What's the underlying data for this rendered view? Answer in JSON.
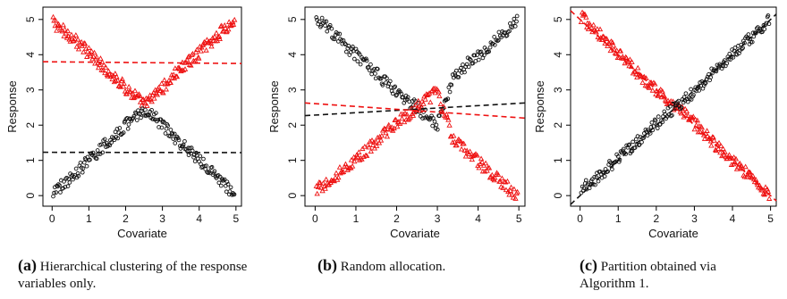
{
  "panels": [
    {
      "chart_data": {
        "type": "scatter",
        "xlabel": "Covariate",
        "ylabel": "Response",
        "xlim": [
          -0.25,
          5.15
        ],
        "ylim": [
          -0.3,
          5.35
        ],
        "xticks": [
          "0",
          "1",
          "2",
          "3",
          "4",
          "5"
        ],
        "yticks": [
          "0",
          "1",
          "2",
          "3",
          "4",
          "5"
        ],
        "series": [
          {
            "marker": "triangle",
            "color": "#ee1111",
            "x": [
              0.05,
              0.4,
              0.8,
              1.2,
              1.6,
              2.0,
              2.3,
              2.5,
              2.7,
              3.0,
              3.4,
              3.8,
              4.2,
              4.6,
              4.95
            ],
            "y": [
              4.9,
              4.6,
              4.25,
              3.85,
              3.45,
              3.05,
              2.8,
              2.55,
              2.75,
              3.05,
              3.5,
              3.85,
              4.25,
              4.65,
              4.95
            ]
          },
          {
            "marker": "circle",
            "color": "#111111",
            "x": [
              0.05,
              0.4,
              0.8,
              1.2,
              1.6,
              2.0,
              2.3,
              2.5,
              2.7,
              3.0,
              3.4,
              3.8,
              4.2,
              4.6,
              4.95
            ],
            "y": [
              0.1,
              0.4,
              0.8,
              1.2,
              1.6,
              2.0,
              2.25,
              2.45,
              2.3,
              2.0,
              1.6,
              1.2,
              0.8,
              0.4,
              0.05
            ]
          }
        ],
        "fit_lines": [
          {
            "color": "#ee1111",
            "x": [
              -0.25,
              5.15
            ],
            "y": [
              3.8,
              3.75
            ]
          },
          {
            "color": "#111111",
            "x": [
              -0.25,
              5.15
            ],
            "y": [
              1.23,
              1.22
            ]
          }
        ]
      }
    },
    {
      "chart_data": {
        "type": "scatter",
        "xlabel": "Covariate",
        "ylabel": "Response",
        "xlim": [
          -0.25,
          5.15
        ],
        "ylim": [
          -0.3,
          5.35
        ],
        "xticks": [
          "0",
          "1",
          "2",
          "3",
          "4",
          "5"
        ],
        "yticks": [
          "0",
          "1",
          "2",
          "3",
          "4",
          "5"
        ],
        "series": [
          {
            "marker": "circle",
            "color": "#111111",
            "x": [
              0.05,
              0.4,
              0.8,
              1.2,
              1.6,
              2.0,
              2.5,
              3.0,
              3.4,
              3.8,
              4.2,
              4.6,
              4.95
            ],
            "y": [
              5.05,
              4.65,
              4.2,
              3.8,
              3.35,
              2.95,
              2.5,
              2.0,
              3.4,
              3.8,
              4.15,
              4.6,
              4.95
            ]
          },
          {
            "marker": "triangle",
            "color": "#ee1111",
            "x": [
              0.05,
              0.4,
              0.8,
              1.2,
              1.6,
              2.0,
              2.5,
              3.0,
              3.4,
              3.8,
              4.2,
              4.6,
              4.95
            ],
            "y": [
              0.2,
              0.45,
              0.85,
              1.2,
              1.65,
              2.05,
              2.5,
              2.95,
              1.55,
              1.15,
              0.75,
              0.35,
              0.0
            ]
          }
        ],
        "fit_lines": [
          {
            "color": "#111111",
            "x": [
              -0.25,
              5.15
            ],
            "y": [
              2.27,
              2.63
            ]
          },
          {
            "color": "#ee1111",
            "x": [
              -0.25,
              5.15
            ],
            "y": [
              2.63,
              2.2
            ]
          }
        ]
      }
    },
    {
      "chart_data": {
        "type": "scatter",
        "xlabel": "Covariate",
        "ylabel": "Response",
        "xlim": [
          -0.25,
          5.15
        ],
        "ylim": [
          -0.3,
          5.35
        ],
        "xticks": [
          "0",
          "1",
          "2",
          "3",
          "4",
          "5"
        ],
        "yticks": [
          "0",
          "1",
          "2",
          "3",
          "4",
          "5"
        ],
        "series": [
          {
            "marker": "triangle",
            "color": "#ee1111",
            "x": [
              0.0,
              0.4,
              0.8,
              1.2,
              1.6,
              2.0,
              2.5,
              3.0,
              3.4,
              3.8,
              4.2,
              4.6,
              5.0
            ],
            "y": [
              5.1,
              4.7,
              4.25,
              3.85,
              3.4,
              3.0,
              2.55,
              2.05,
              1.6,
              1.2,
              0.8,
              0.4,
              -0.05
            ]
          },
          {
            "marker": "circle",
            "color": "#111111",
            "x": [
              0.0,
              0.4,
              0.8,
              1.2,
              1.6,
              2.0,
              2.5,
              3.0,
              3.4,
              3.8,
              4.2,
              4.6,
              5.0
            ],
            "y": [
              0.15,
              0.45,
              0.85,
              1.25,
              1.6,
              2.05,
              2.5,
              2.95,
              3.4,
              3.8,
              4.2,
              4.6,
              5.05
            ]
          }
        ],
        "fit_lines": [
          {
            "color": "#111111",
            "x": [
              -0.25,
              5.15
            ],
            "y": [
              -0.25,
              5.15
            ]
          },
          {
            "color": "#ee1111",
            "x": [
              -0.25,
              5.15
            ],
            "y": [
              5.25,
              -0.15
            ]
          }
        ]
      }
    }
  ],
  "captions": [
    {
      "tag": "(a)",
      "text": "Hierarchical clustering of the response variables only."
    },
    {
      "tag": "(b)",
      "text": "Random allocation."
    },
    {
      "tag": "(c)",
      "text": "Partition obtained via Algorithm 1."
    }
  ]
}
